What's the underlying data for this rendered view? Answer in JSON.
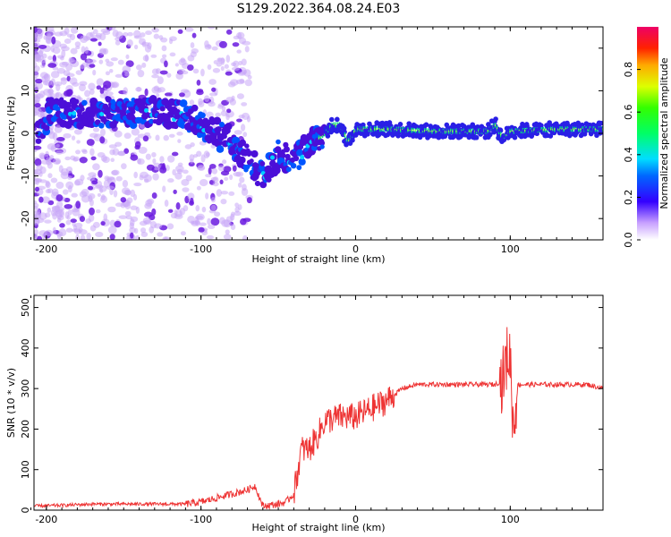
{
  "title": "S129.2022.364.08.24.E03",
  "chart_data": [
    {
      "type": "heatmap",
      "xlabel": "Height of straight line (km)",
      "ylabel": "Frequency (Hz)",
      "xlim": [
        -208,
        160
      ],
      "ylim": [
        -25,
        25
      ],
      "xticks": [
        -200,
        -100,
        0,
        100
      ],
      "yticks": [
        20,
        10,
        0,
        -10,
        -20
      ],
      "colorbar": {
        "label": "Normalized spectral amplitude",
        "range": [
          0,
          1
        ],
        "ticks": [
          0.0,
          0.2,
          0.4,
          0.6,
          0.8
        ]
      },
      "ridge": [
        {
          "x": -200,
          "y": 5
        },
        {
          "x": -180,
          "y": 5
        },
        {
          "x": -150,
          "y": 5
        },
        {
          "x": -130,
          "y": 5
        },
        {
          "x": -110,
          "y": 4
        },
        {
          "x": -100,
          "y": 2
        },
        {
          "x": -90,
          "y": 0
        },
        {
          "x": -80,
          "y": -2
        },
        {
          "x": -70,
          "y": -6
        },
        {
          "x": -60,
          "y": -10
        },
        {
          "x": -50,
          "y": -5
        },
        {
          "x": -40,
          "y": -6
        },
        {
          "x": -30,
          "y": -3
        },
        {
          "x": -20,
          "y": 0
        },
        {
          "x": -15,
          "y": 2
        },
        {
          "x": -10,
          "y": 2
        },
        {
          "x": -5,
          "y": -2
        },
        {
          "x": 0,
          "y": 1
        },
        {
          "x": 20,
          "y": 1
        },
        {
          "x": 50,
          "y": 0.5
        },
        {
          "x": 85,
          "y": 0.5
        },
        {
          "x": 90,
          "y": 2
        },
        {
          "x": 95,
          "y": -1
        },
        {
          "x": 100,
          "y": 0.5
        },
        {
          "x": 130,
          "y": 1
        },
        {
          "x": 160,
          "y": 1
        }
      ]
    },
    {
      "type": "line",
      "xlabel": "Height of straight line (km)",
      "ylabel": "SNR (10 * v/v)",
      "xlim": [
        -208,
        160
      ],
      "ylim": [
        0,
        530
      ],
      "xticks": [
        -200,
        -100,
        0,
        100
      ],
      "yticks": [
        0,
        100,
        200,
        300,
        400,
        500
      ],
      "color": "#ee3333",
      "series": [
        {
          "x": [
            -208,
            -190,
            -170,
            -150,
            -130,
            -110,
            -100,
            -90,
            -80,
            -70,
            -65,
            -60,
            -50,
            -45,
            -40,
            -35,
            -30,
            -25,
            -20,
            -10,
            0,
            10,
            20,
            30,
            40,
            60,
            80,
            90,
            95,
            98,
            100,
            102,
            105,
            110,
            130,
            150,
            160
          ],
          "y": [
            10,
            12,
            15,
            15,
            15,
            15,
            20,
            30,
            40,
            50,
            60,
            10,
            15,
            20,
            40,
            150,
            150,
            180,
            220,
            230,
            230,
            250,
            270,
            300,
            310,
            310,
            310,
            310,
            320,
            380,
            380,
            200,
            310,
            310,
            310,
            310,
            300
          ]
        }
      ]
    }
  ]
}
